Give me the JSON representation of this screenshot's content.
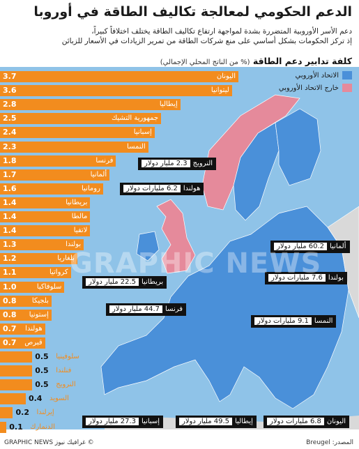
{
  "title": "الدعم الحكومي لمعالجة تكاليف الطاقة في أوروبا",
  "subtitle_line1": "دعم الأسر الأوروبية المتضررة بشدة لمواجهة ارتفاع تكاليف الطاقة يختلف اختلافاً كبيراً،",
  "subtitle_line2": "إذ تركز الحكومات بشكل أساسي على منع شركات الطاقة من تمرير الزيادات في الأسعار للزبائن",
  "chart_title": "كلفة تدابير دعم الطاقة",
  "chart_unit": "(% من الناتج المحلي الإجمالي)",
  "legend": {
    "eu": "الاتحاد الأوروبي",
    "non_eu": "خارج الاتحاد الأوروبي",
    "eu_color": "#4a90d9",
    "non_eu_color": "#e58a9b"
  },
  "colors": {
    "bar": "#f28c1e",
    "sea": "#8fc3e8",
    "land": "#d9d9d9"
  },
  "chart_data": {
    "type": "bar",
    "orientation": "horizontal",
    "categories": [
      "اليونان",
      "ليتوانيا",
      "إيطاليا",
      "جمهورية التشيك",
      "إسبانيا",
      "النمسا",
      "فرنسا",
      "ألمانيا",
      "رومانيا",
      "بريطانيا",
      "مالطا",
      "لاتفيا",
      "بولندا",
      "بلغاريا",
      "كرواتيا",
      "سلوفاكيا",
      "بلجيكا",
      "إستونيا",
      "هولندا",
      "قبرص",
      "سلوفينيا",
      "فنلندا",
      "النرويج",
      "السويد",
      "إيرلندا",
      "الدنمارك"
    ],
    "values": [
      3.7,
      3.6,
      2.8,
      2.5,
      2.4,
      2.3,
      1.8,
      1.7,
      1.6,
      1.4,
      1.4,
      1.4,
      1.3,
      1.2,
      1.1,
      1.0,
      0.8,
      0.8,
      0.7,
      0.7,
      0.5,
      0.5,
      0.5,
      0.4,
      0.2,
      0.1
    ],
    "value_labels": [
      "3.7",
      "3.6",
      "2.8",
      "2.5",
      "2.4",
      "2.3",
      "1.8",
      "1.7",
      "1.6",
      "1.4",
      "1.4",
      "1.4",
      "1.3",
      "1.2",
      "1.1",
      "1.0",
      "0.8",
      "0.8",
      "0.7",
      "0.7",
      "0.5",
      "0.5",
      "0.5",
      "0.4",
      "0.2",
      "0.1"
    ],
    "xlim": [
      0,
      3.7
    ]
  },
  "callouts": [
    {
      "country": "النرويج",
      "amount": "2.3 مليار دولار"
    },
    {
      "country": "هولندا",
      "amount": "6.2 مليارات دولار"
    },
    {
      "country": "ألمانيا",
      "amount": "60.2 مليار دولار"
    },
    {
      "country": "بولندا",
      "amount": "7.6 مليارات دولار"
    },
    {
      "country": "بريطانيا",
      "amount": "22.5 مليار دولار"
    },
    {
      "country": "فرنسا",
      "amount": "44.7 مليار دولار"
    },
    {
      "country": "النمسا",
      "amount": "9.1 مليارات دولار"
    },
    {
      "country": "اليونان",
      "amount": "6.8 مليارات دولار"
    },
    {
      "country": "إيطاليا",
      "amount": "49.5 مليار دولار"
    },
    {
      "country": "إسبانيا",
      "amount": "27.3 مليار دولار"
    }
  ],
  "source": "المصدر: Breugel",
  "credit": "© غرافيك نيوز GRAPHIC NEWS",
  "watermark": "GRAPHIC NEWS"
}
